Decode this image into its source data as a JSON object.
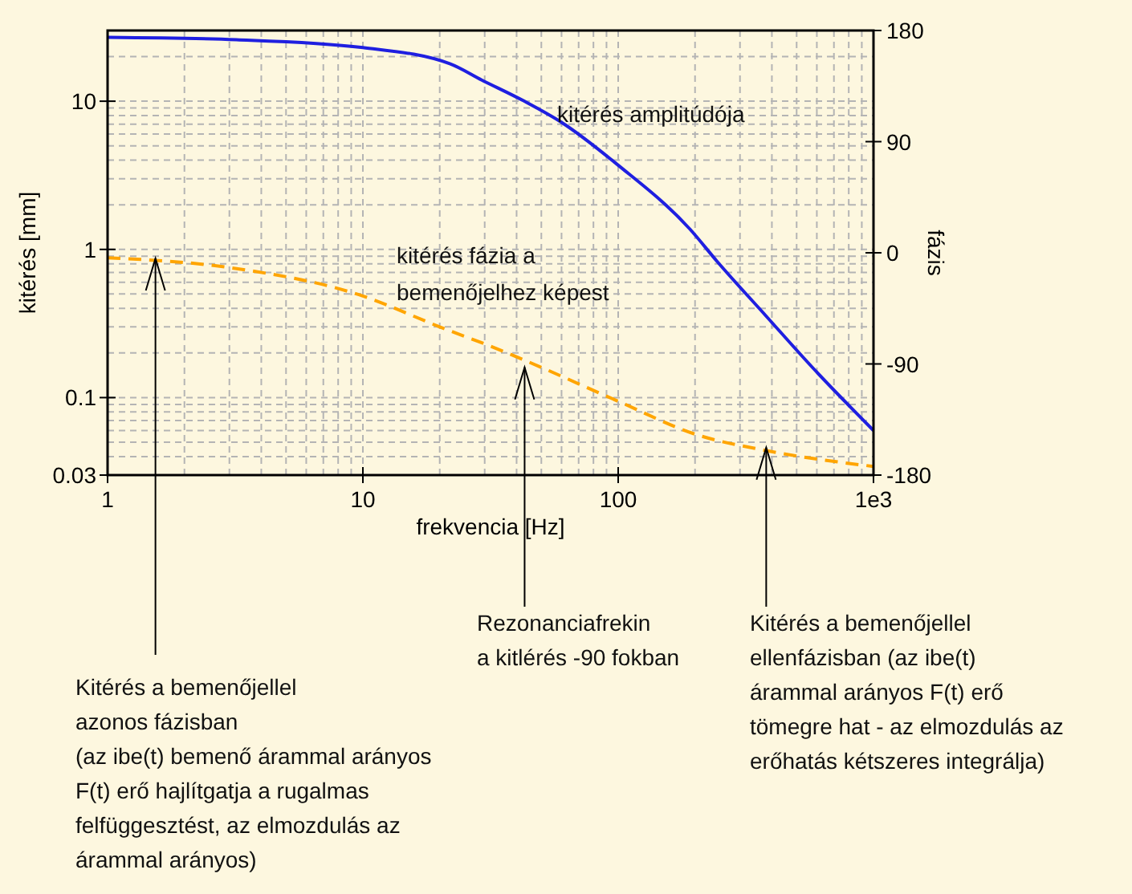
{
  "chart_data": {
    "type": "line",
    "xlabel": "frekvencia [Hz]",
    "ylabel": "kitérés [mm]",
    "y2label": "fázis",
    "log": "xy",
    "grid": true,
    "legend": false,
    "xlim": [
      1,
      1000
    ],
    "xticks": [
      1,
      {
        "value": 2,
        "label": null
      },
      {
        "value": 3,
        "label": null
      },
      {
        "value": 4,
        "label": null
      },
      {
        "value": 5,
        "label": null
      },
      {
        "value": 6,
        "label": null
      },
      {
        "value": 7,
        "label": null
      },
      {
        "value": 8,
        "label": null
      },
      {
        "value": 9,
        "label": null
      },
      10,
      {
        "value": 20,
        "label": null
      },
      {
        "value": 30,
        "label": null
      },
      {
        "value": 40,
        "label": null
      },
      {
        "value": 50,
        "label": null
      },
      {
        "value": 60,
        "label": null
      },
      {
        "value": 70,
        "label": null
      },
      {
        "value": 80,
        "label": null
      },
      {
        "value": 90,
        "label": null
      },
      100,
      {
        "value": 200,
        "label": null
      },
      {
        "value": 300,
        "label": null
      },
      {
        "value": 400,
        "label": null
      },
      {
        "value": 500,
        "label": null
      },
      {
        "value": 600,
        "label": null
      },
      {
        "value": 700,
        "label": null
      },
      {
        "value": 800,
        "label": null
      },
      {
        "value": 900,
        "label": null
      },
      {
        "value": 1000,
        "label": "1e3"
      }
    ],
    "ylim": [
      0.03,
      30
    ],
    "yticks": [
      0.03,
      {
        "value": 0.04,
        "label": null
      },
      {
        "value": 0.05,
        "label": null
      },
      {
        "value": 0.06,
        "label": null
      },
      {
        "value": 0.07,
        "label": null
      },
      {
        "value": 0.08,
        "label": null
      },
      {
        "value": 0.09,
        "label": null
      },
      0.1,
      {
        "value": 0.2,
        "label": null
      },
      {
        "value": 0.3,
        "label": null
      },
      {
        "value": 0.4,
        "label": null
      },
      {
        "value": 0.5,
        "label": null
      },
      {
        "value": 0.6,
        "label": null
      },
      {
        "value": 0.7,
        "label": null
      },
      {
        "value": 0.8,
        "label": null
      },
      {
        "value": 0.9,
        "label": null
      },
      1,
      {
        "value": 2,
        "label": null
      },
      {
        "value": 3,
        "label": null
      },
      {
        "value": 4,
        "label": null
      },
      {
        "value": 5,
        "label": null
      },
      {
        "value": 6,
        "label": null
      },
      {
        "value": 7,
        "label": null
      },
      {
        "value": 8,
        "label": null
      },
      {
        "value": 9,
        "label": null
      },
      10,
      {
        "value": 20,
        "label": null
      }
    ],
    "y2lim": [
      -180,
      180
    ],
    "y2ticks": [
      -180,
      -90,
      0,
      90,
      180
    ],
    "series": [
      {
        "name": "kitérés amplitúdója",
        "color": "#1f1fe0",
        "line_style": "solid",
        "x": [
          1,
          3.2,
          10,
          21.9,
          29.2,
          42.9,
          60,
          100,
          191,
          244,
          377,
          580,
          1000
        ],
        "values": [
          27,
          26,
          23,
          17.9,
          13.9,
          10,
          7.2,
          3.7,
          1.37,
          0.83,
          0.36,
          0.158,
          0.06
        ]
      },
      {
        "name": "kitérés fázia a\nbemenőjelhez képest",
        "color": "#ffa500",
        "line_style": "dashed",
        "axis": "y2",
        "x": [
          1,
          3,
          10,
          20,
          33.8,
          43,
          102,
          201,
          377,
          1000
        ],
        "values": [
          -4,
          -12,
          -35,
          -60,
          -78,
          -87,
          -121,
          -147,
          -160,
          -173
        ]
      }
    ],
    "annotations": [
      {
        "text": "Kitérés a bemenőjellel\nazonos fázisban\n(az ibe(t) bemenő árammal arányos\nF(t) erő hajlítgatja a rugalmas\nfelfüggesztést, az elmozdulás az\nárammal arányos)",
        "x": 1.54,
        "y": 0.87
      },
      {
        "text": "Rezonanciafrekin\na kitlérés -90 fokban",
        "x": 43,
        "y": 0.16
      },
      {
        "text": "Kitérés a bemenőjellel\nellenfázisban (az ibe(t)\nárammal arányos F(t) erő\ntömegre hat - az elmozdulás az\nerőhatás kétszeres integrálja)",
        "x": 380,
        "y": 0.046
      }
    ]
  }
}
